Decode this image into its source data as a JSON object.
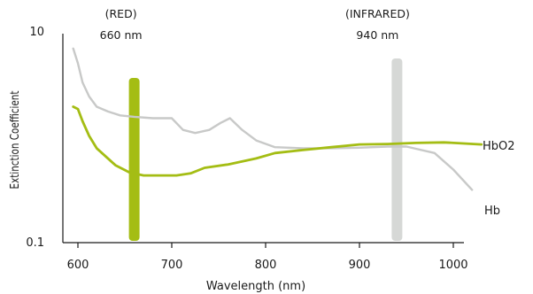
{
  "chart_data": {
    "type": "line",
    "title": "",
    "xlabel": "Wavelength (nm)",
    "ylabel": "Extinction Coefficient",
    "xlim": [
      600,
      1000
    ],
    "ylim": [
      0.1,
      10
    ],
    "y_scale": "log",
    "grid": false,
    "x_tick_labels": [
      "600",
      "700",
      "800",
      "900",
      "1000"
    ],
    "x_ticks": [
      600,
      700,
      800,
      900,
      1000
    ],
    "y_tick_labels": [
      {
        "label": "10",
        "value": 10
      },
      {
        "label": "0.1",
        "value": 0.1
      }
    ],
    "bands": [
      {
        "label_top": "(RED)",
        "label_bottom": "660 nm",
        "center": 660,
        "color": "#a4bd14"
      },
      {
        "label_top": "(INFRARED)",
        "label_bottom": "940 nm",
        "center": 940,
        "color": "#d6d8d6"
      }
    ],
    "series": [
      {
        "name": "Hb",
        "color": "#c8c9c8",
        "points": [
          [
            595,
            7.2
          ],
          [
            600,
            5.2
          ],
          [
            605,
            3.4
          ],
          [
            612,
            2.5
          ],
          [
            620,
            2.0
          ],
          [
            632,
            1.8
          ],
          [
            645,
            1.65
          ],
          [
            660,
            1.6
          ],
          [
            680,
            1.55
          ],
          [
            700,
            1.55
          ],
          [
            712,
            1.2
          ],
          [
            725,
            1.12
          ],
          [
            740,
            1.2
          ],
          [
            752,
            1.4
          ],
          [
            762,
            1.55
          ],
          [
            775,
            1.2
          ],
          [
            790,
            0.95
          ],
          [
            810,
            0.82
          ],
          [
            840,
            0.8
          ],
          [
            870,
            0.8
          ],
          [
            900,
            0.81
          ],
          [
            930,
            0.83
          ],
          [
            950,
            0.83
          ],
          [
            980,
            0.72
          ],
          [
            1000,
            0.5
          ],
          [
            1020,
            0.32
          ]
        ]
      },
      {
        "name": "HbO2",
        "color": "#a4bd14",
        "points": [
          [
            595,
            2.0
          ],
          [
            600,
            1.9
          ],
          [
            605,
            1.45
          ],
          [
            612,
            1.05
          ],
          [
            620,
            0.8
          ],
          [
            640,
            0.55
          ],
          [
            655,
            0.47
          ],
          [
            670,
            0.44
          ],
          [
            690,
            0.44
          ],
          [
            705,
            0.44
          ],
          [
            720,
            0.46
          ],
          [
            735,
            0.52
          ],
          [
            760,
            0.56
          ],
          [
            790,
            0.64
          ],
          [
            810,
            0.72
          ],
          [
            840,
            0.77
          ],
          [
            870,
            0.82
          ],
          [
            900,
            0.87
          ],
          [
            930,
            0.88
          ],
          [
            960,
            0.9
          ],
          [
            990,
            0.91
          ],
          [
            1030,
            0.87
          ]
        ]
      }
    ]
  }
}
